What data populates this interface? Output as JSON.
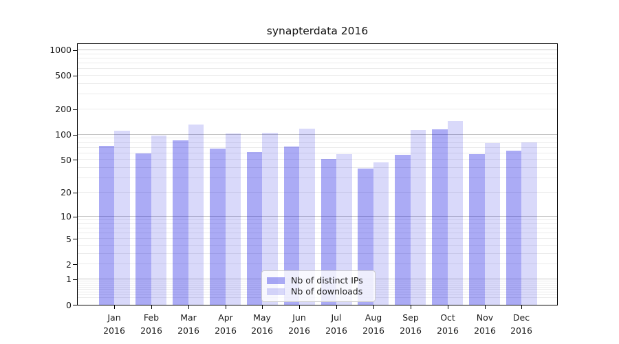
{
  "title": "synapterdata 2016",
  "chart_data": {
    "type": "bar",
    "title": "synapterdata 2016",
    "categories": [
      "Jan 2016",
      "Feb 2016",
      "Mar 2016",
      "Apr 2016",
      "May 2016",
      "Jun 2016",
      "Jul 2016",
      "Aug 2016",
      "Sep 2016",
      "Oct 2016",
      "Nov 2016",
      "Dec 2016"
    ],
    "series": [
      {
        "name": "Nb of distinct IPs",
        "color": "rgba(0,0,225,0.33)",
        "values": [
          74,
          60,
          85,
          68,
          62,
          72,
          51,
          39,
          57,
          116,
          59,
          65
        ]
      },
      {
        "name": "Nb of downloads",
        "color": "rgba(0,0,220,0.15)",
        "values": [
          112,
          98,
          132,
          104,
          105,
          117,
          59,
          47,
          114,
          145,
          80,
          81
        ]
      }
    ],
    "xlabel": "",
    "ylabel": "",
    "y_scale": "log1p",
    "y_axis_max": 1180,
    "y_tick_labels": [
      "0",
      "1",
      "2",
      "5",
      "10",
      "20",
      "50",
      "100",
      "200",
      "500",
      "1000"
    ],
    "y_tick_values": [
      0,
      1,
      2,
      5,
      10,
      20,
      50,
      100,
      200,
      500,
      1000
    ],
    "y_major_gridline_values": [
      1,
      10,
      100,
      1000
    ],
    "grid": "on",
    "legend_position": "lower center inside plot"
  },
  "colors": {
    "bar_distinct_ips": "rgba(0,0,225,0.33)",
    "bar_downloads": "rgba(0,0,220,0.15)",
    "grid_major": "#c6c6c6",
    "grid_minor": "#ebebeb",
    "axis_frame": "#000000",
    "text": "#1a1a1a",
    "legend_border": "#cccccc"
  }
}
